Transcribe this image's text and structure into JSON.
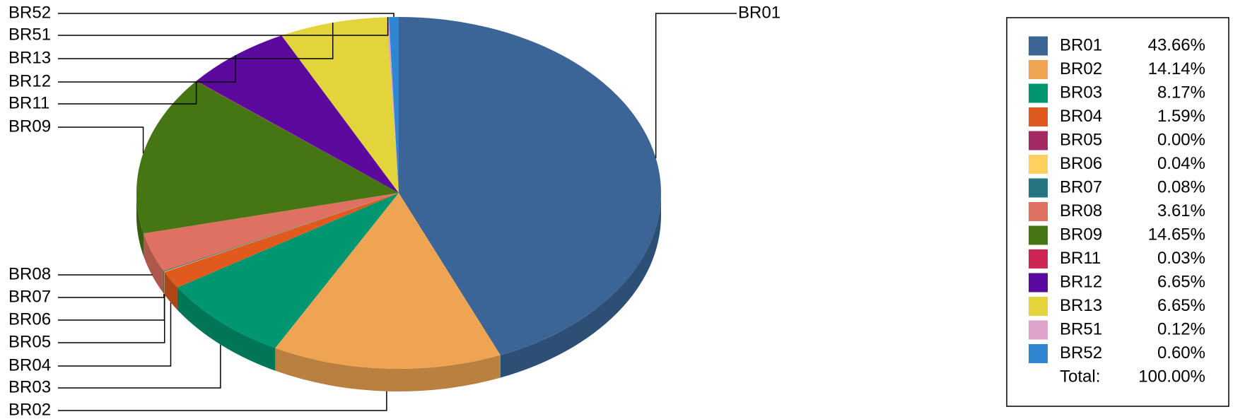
{
  "chart_data": {
    "type": "pie",
    "categories": [
      "BR01",
      "BR02",
      "BR03",
      "BR04",
      "BR05",
      "BR06",
      "BR07",
      "BR08",
      "BR09",
      "BR11",
      "BR12",
      "BR13",
      "BR51",
      "BR52"
    ],
    "values": [
      43.66,
      14.14,
      8.17,
      1.59,
      0.0,
      0.04,
      0.08,
      3.61,
      14.65,
      0.03,
      6.65,
      6.65,
      0.12,
      0.6
    ],
    "value_labels": [
      "43.66%",
      "14.14%",
      "8.17%",
      "1.59%",
      "0.00%",
      "0.04%",
      "0.08%",
      "3.61%",
      "14.65%",
      "0.03%",
      "6.65%",
      "6.65%",
      "0.12%",
      "0.60%"
    ],
    "colors": [
      "#3a6596",
      "#eea453",
      "#009670",
      "#e05a1e",
      "#a32a63",
      "#fdd060",
      "#247683",
      "#de7162",
      "#467613",
      "#ce2554",
      "#5c0a9e",
      "#e3d43c",
      "#dca4c8",
      "#3186d2"
    ],
    "total_label": "Total:",
    "total_value_label": "100.00%",
    "legend": "right"
  }
}
